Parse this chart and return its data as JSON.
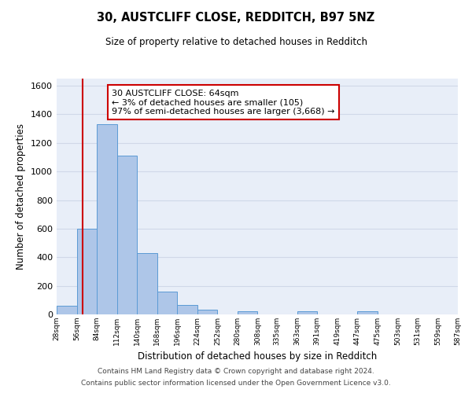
{
  "title": "30, AUSTCLIFF CLOSE, REDDITCH, B97 5NZ",
  "subtitle": "Size of property relative to detached houses in Redditch",
  "xlabel": "Distribution of detached houses by size in Redditch",
  "ylabel": "Number of detached properties",
  "bar_edges": [
    28,
    56,
    84,
    112,
    140,
    168,
    196,
    224,
    252,
    280,
    308,
    335,
    363,
    391,
    419,
    447,
    475,
    503,
    531,
    559,
    587
  ],
  "bar_heights": [
    60,
    600,
    1330,
    1110,
    430,
    160,
    65,
    35,
    0,
    20,
    0,
    0,
    20,
    0,
    0,
    20,
    0,
    0,
    0,
    0
  ],
  "bar_color": "#aec6e8",
  "bar_edge_color": "#5b9bd5",
  "property_line_x": 64,
  "property_line_color": "#cc0000",
  "annotation_line1": "30 AUSTCLIFF CLOSE: 64sqm",
  "annotation_line2": "← 3% of detached houses are smaller (105)",
  "annotation_line3": "97% of semi-detached houses are larger (3,668) →",
  "annotation_box_color": "#ffffff",
  "annotation_box_edge_color": "#cc0000",
  "ylim": [
    0,
    1650
  ],
  "yticks": [
    0,
    200,
    400,
    600,
    800,
    1000,
    1200,
    1400,
    1600
  ],
  "grid_color": "#d0d8e8",
  "background_color": "#e8eef8",
  "footer_line1": "Contains HM Land Registry data © Crown copyright and database right 2024.",
  "footer_line2": "Contains public sector information licensed under the Open Government Licence v3.0.",
  "tick_labels": [
    "28sqm",
    "56sqm",
    "84sqm",
    "112sqm",
    "140sqm",
    "168sqm",
    "196sqm",
    "224sqm",
    "252sqm",
    "280sqm",
    "308sqm",
    "335sqm",
    "363sqm",
    "391sqm",
    "419sqm",
    "447sqm",
    "475sqm",
    "503sqm",
    "531sqm",
    "559sqm",
    "587sqm"
  ]
}
